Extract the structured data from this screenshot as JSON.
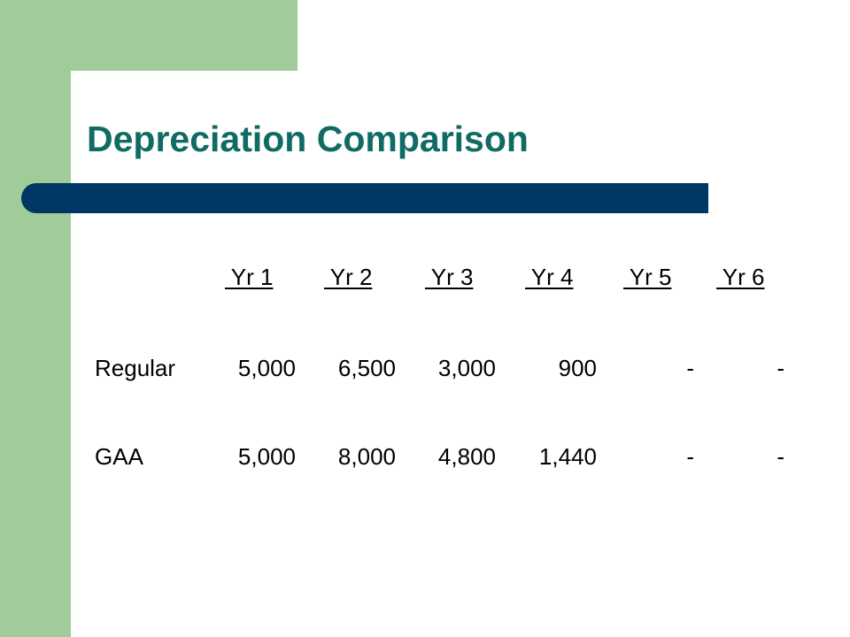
{
  "slide": {
    "title": "Depreciation Comparison",
    "colors": {
      "accent_green": "#9fcc98",
      "title_teal": "#0f6b63",
      "bar_navy": "#003764"
    }
  },
  "table": {
    "headers": [
      " Yr 1",
      " Yr 2",
      " Yr 3",
      " Yr 4",
      " Yr 5",
      " Yr 6"
    ],
    "rows": [
      {
        "label": "Regular",
        "values": [
          "5,000",
          "6,500",
          "3,000",
          "900",
          "-",
          "-"
        ]
      },
      {
        "label": "GAA",
        "values": [
          "5,000",
          "8,000",
          "4,800",
          "1,440",
          "-",
          "-"
        ]
      }
    ]
  }
}
